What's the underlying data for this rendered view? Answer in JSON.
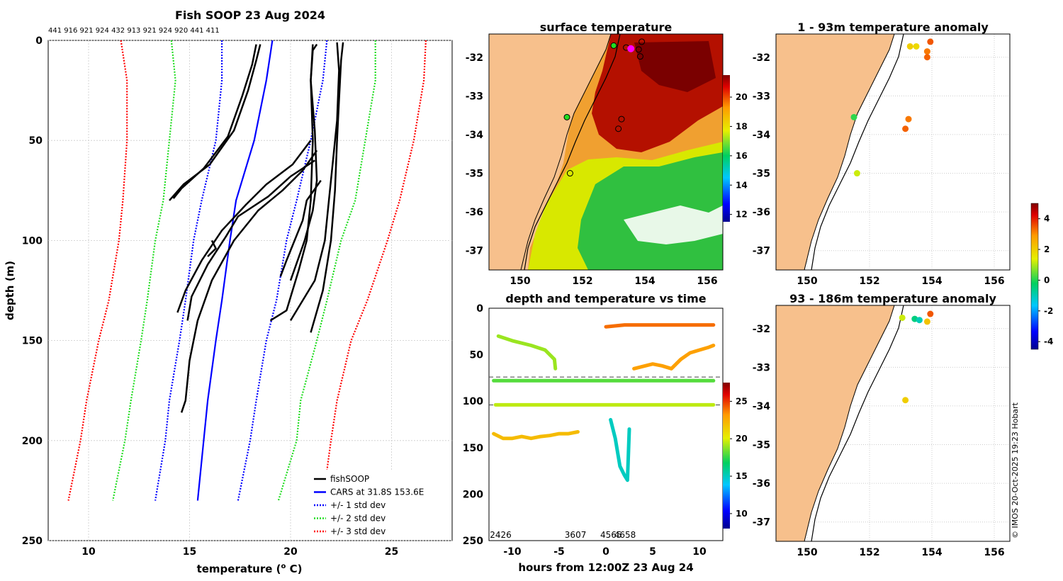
{
  "figure": {
    "credit": "© IMOS 20-Oct-2025 19:23 Hobart"
  },
  "chart_data": [
    {
      "id": "profile",
      "type": "line",
      "title": "Fish SOOP 23 Aug 2024",
      "subtitle_ids": "441 916 921 924 432 913 921 924 920 441 411",
      "xlabel": "temperature (",
      "xlabel_sup": "o",
      "xlabel_tail": " C)",
      "ylabel": "depth (m)",
      "xlim": [
        8,
        28
      ],
      "ylim": [
        0,
        250
      ],
      "xticks": [
        "10",
        "15",
        "20",
        "25"
      ],
      "yticks": [
        "0",
        "50",
        "100",
        "150",
        "200",
        "250"
      ],
      "grid": true,
      "legend": {
        "position": "bottom-right",
        "entries": [
          {
            "label": "fishSOOP",
            "color": "#000000",
            "style": "solid"
          },
          {
            "label": "CARS at 31.8S 153.6E",
            "color": "#0000ff",
            "style": "solid"
          },
          {
            "label": "+/- 1 std dev",
            "color": "#0000ff",
            "style": "dotted"
          },
          {
            "label": "+/- 2 std dev",
            "color": "#22dd22",
            "style": "dotted"
          },
          {
            "label": "+/- 3 std dev",
            "color": "#ff0000",
            "style": "dotted"
          }
        ]
      },
      "series": [
        {
          "name": "CARS mean",
          "color": "#0000ff",
          "dash": false,
          "depth": [
            0,
            20,
            50,
            80,
            100,
            130,
            150,
            180,
            200,
            230
          ],
          "temp": [
            19.1,
            18.8,
            18.2,
            17.3,
            17.0,
            16.6,
            16.3,
            15.9,
            15.7,
            15.4
          ]
        },
        {
          "name": "-1 std",
          "color": "#0000ff",
          "dash": true,
          "depth": [
            0,
            20,
            50,
            80,
            100,
            130,
            150,
            180,
            200,
            230
          ],
          "temp": [
            16.6,
            16.6,
            16.3,
            15.6,
            15.2,
            14.8,
            14.5,
            14.0,
            13.8,
            13.3
          ]
        },
        {
          "name": "+1 std",
          "color": "#0000ff",
          "dash": true,
          "depth": [
            0,
            20,
            50,
            80,
            100,
            130,
            150,
            180,
            200,
            230
          ],
          "temp": [
            21.8,
            21.6,
            21.0,
            20.3,
            19.8,
            19.3,
            18.8,
            18.3,
            18.0,
            17.4
          ]
        },
        {
          "name": "-2 std",
          "color": "#22dd22",
          "dash": true,
          "depth": [
            0,
            20,
            50,
            80,
            100,
            130,
            150,
            180,
            200,
            230
          ],
          "temp": [
            14.1,
            14.3,
            14.0,
            13.7,
            13.3,
            12.9,
            12.6,
            12.1,
            11.8,
            11.2
          ]
        },
        {
          "name": "+2 std",
          "color": "#22dd22",
          "dash": true,
          "depth": [
            0,
            20,
            50,
            80,
            100,
            130,
            150,
            180,
            200,
            230
          ],
          "temp": [
            24.2,
            24.2,
            23.7,
            23.2,
            22.5,
            21.8,
            21.3,
            20.5,
            20.3,
            19.4
          ]
        },
        {
          "name": "-3 std",
          "color": "#ff0000",
          "dash": true,
          "depth": [
            0,
            20,
            50,
            80,
            100,
            130,
            150,
            180,
            200,
            230
          ],
          "temp": [
            11.6,
            11.9,
            11.9,
            11.7,
            11.5,
            11.0,
            10.5,
            9.9,
            9.6,
            9.0
          ]
        },
        {
          "name": "+3 std",
          "color": "#ff0000",
          "dash": true,
          "depth": [
            0,
            20,
            50,
            80,
            100,
            130,
            150,
            180,
            200,
            230
          ],
          "temp": [
            26.7,
            26.6,
            26.1,
            25.4,
            24.8,
            23.8,
            23.0,
            22.3,
            22.0,
            21.6
          ]
        }
      ],
      "profiles": [
        {
          "depth": [
            2,
            10,
            25,
            45,
            62,
            72,
            80
          ],
          "temp": [
            18.5,
            18.3,
            17.9,
            17.2,
            16.0,
            14.7,
            14.0
          ]
        },
        {
          "depth": [
            2,
            12,
            28,
            48,
            64,
            74,
            79
          ],
          "temp": [
            18.3,
            18.1,
            17.6,
            16.9,
            15.7,
            14.6,
            14.2
          ]
        },
        {
          "depth": [
            55,
            65,
            75,
            85,
            100,
            120,
            140,
            160,
            180,
            186
          ],
          "temp": [
            21.3,
            20.6,
            19.6,
            18.4,
            17.2,
            16.1,
            15.4,
            15.0,
            14.8,
            14.6
          ]
        },
        {
          "depth": [
            50,
            62,
            72,
            82,
            95,
            110,
            125,
            136
          ],
          "temp": [
            21.0,
            20.1,
            18.8,
            17.8,
            16.6,
            15.6,
            14.8,
            14.4
          ]
        },
        {
          "depth": [
            60,
            68,
            78,
            88,
            98,
            112,
            128,
            140
          ],
          "temp": [
            21.2,
            20.0,
            18.9,
            17.4,
            16.8,
            15.9,
            15.1,
            14.9
          ]
        },
        {
          "depth": [
            1,
            10,
            30,
            50,
            75,
            100,
            125,
            146
          ],
          "temp": [
            22.6,
            22.5,
            22.4,
            22.3,
            22.2,
            22.0,
            21.6,
            21.0
          ]
        },
        {
          "depth": [
            1,
            15,
            40,
            60,
            80,
            100,
            120,
            140
          ],
          "temp": [
            22.3,
            22.4,
            22.3,
            22.1,
            21.9,
            21.7,
            21.2,
            20.0
          ]
        },
        {
          "depth": [
            2,
            5,
            20,
            45,
            70,
            85,
            100,
            120
          ],
          "temp": [
            21.3,
            21.1,
            21.0,
            21.2,
            21.3,
            21.1,
            20.7,
            20.0
          ]
        },
        {
          "depth": [
            2,
            20,
            50,
            80,
            100,
            115,
            135,
            140
          ],
          "temp": [
            21.1,
            21.0,
            21.1,
            21.0,
            20.8,
            20.4,
            19.8,
            19.0
          ]
        },
        {
          "depth": [
            70,
            80,
            90,
            100,
            110,
            118
          ],
          "temp": [
            21.5,
            20.8,
            20.6,
            20.2,
            19.8,
            19.5
          ]
        },
        {
          "depth": [
            100,
            104,
            108
          ],
          "temp": [
            16.1,
            16.3,
            15.9
          ]
        }
      ]
    },
    {
      "id": "sst",
      "type": "heatmap",
      "title": "surface temperature",
      "xlim": [
        149,
        156.5
      ],
      "ylim": [
        -37.5,
        -31.4
      ],
      "xticks": [
        "150",
        "152",
        "154",
        "156"
      ],
      "yticks": [
        "-32",
        "-33",
        "-34",
        "-35",
        "-36",
        "-37"
      ],
      "colorbar": {
        "ticks": [
          "20",
          "18",
          "16",
          "14",
          "12"
        ],
        "min": 11.5,
        "max": 21.5
      },
      "stations": [
        {
          "lon": 153.0,
          "lat": -31.7,
          "color": "#22dd22"
        },
        {
          "lon": 153.4,
          "lat": -31.75,
          "color": "#ffffff"
        },
        {
          "lon": 153.55,
          "lat": -31.78,
          "color": "#ff00ff"
        },
        {
          "lon": 153.9,
          "lat": -31.6,
          "color": "#ffffff"
        },
        {
          "lon": 153.8,
          "lat": -31.8,
          "color": "#ffffff"
        },
        {
          "lon": 153.85,
          "lat": -31.98,
          "color": "#ffffff"
        },
        {
          "lon": 151.5,
          "lat": -33.55,
          "color": "#22dd22"
        },
        {
          "lon": 153.25,
          "lat": -33.6,
          "color": "#ffffff"
        },
        {
          "lon": 153.15,
          "lat": -33.85,
          "color": "#ffffff"
        },
        {
          "lon": 151.6,
          "lat": -35.0,
          "color": "#ffffff"
        }
      ]
    },
    {
      "id": "timeseries",
      "type": "scatter",
      "title": "depth and temperature vs time",
      "xlabel": "hours from 12:00Z 23 Aug 24",
      "xlim": [
        -12.5,
        12.5
      ],
      "ylim": [
        0,
        250
      ],
      "xticks": [
        "-10",
        "-5",
        "0",
        "5",
        "10"
      ],
      "yticks": [
        "0",
        "50",
        "100",
        "150",
        "200",
        "250"
      ],
      "dashed_lines_depth": [
        74,
        104
      ],
      "id_labels": [
        {
          "text": "2426",
          "hour": -11.5
        },
        {
          "text": "3607",
          "hour": -3.5
        },
        {
          "text": "4565",
          "hour": 0.3
        },
        {
          "text": "4658",
          "hour": 1.8
        }
      ],
      "colorbar": {
        "ticks": [
          "25",
          "20",
          "15",
          "10"
        ],
        "min": 8,
        "max": 27.5
      },
      "series": [
        {
          "name": "deep-green",
          "hour": [
            -11.5,
            -10,
            -8,
            -6.5,
            -5.5,
            -5.4
          ],
          "depth": [
            30,
            35,
            40,
            45,
            55,
            65
          ],
          "temp": [
            19,
            19,
            18.8,
            18.6,
            18.5,
            18.5
          ]
        },
        {
          "name": "drop-105",
          "hour": [
            -11.8,
            -11,
            -10,
            -9,
            -8,
            -6,
            -4,
            -2,
            0,
            2,
            4,
            6,
            8,
            10,
            11.5
          ],
          "depth": [
            104,
            104,
            104,
            104,
            104,
            104,
            104,
            104,
            104,
            104,
            104,
            104,
            104,
            104,
            104
          ],
          "temp": [
            19.5,
            19.5,
            19.5,
            19.5,
            19.5,
            19.5,
            19.5,
            19.5,
            19.5,
            19.5,
            19.5,
            19.5,
            19.5,
            19.5,
            19.5
          ]
        },
        {
          "name": "drop-78",
          "hour": [
            -12,
            -10,
            -8,
            -6,
            -4,
            -2,
            0,
            2,
            4,
            6,
            8,
            10,
            11.5
          ],
          "depth": [
            78,
            78,
            78,
            78,
            78,
            78,
            78,
            78,
            78,
            78,
            78,
            78,
            78
          ],
          "temp": [
            18,
            18,
            18,
            18,
            18,
            18,
            18,
            18,
            18,
            18,
            18,
            18,
            18
          ]
        },
        {
          "name": "shallow-yellow",
          "hour": [
            -12,
            -11,
            -10,
            -9,
            -8,
            -7,
            -6,
            -5,
            -4,
            -3
          ],
          "depth": [
            135,
            140,
            140,
            138,
            140,
            138,
            137,
            135,
            135,
            133
          ],
          "temp": [
            22,
            22,
            22,
            22,
            22,
            22,
            22,
            22,
            22,
            22
          ]
        },
        {
          "name": "cyan-dive",
          "hour": [
            0.5,
            1,
            1.5,
            2,
            2.3,
            2.5
          ],
          "depth": [
            120,
            140,
            170,
            180,
            185,
            130
          ],
          "temp": [
            15,
            15,
            14.5,
            14.5,
            14.5,
            15
          ]
        },
        {
          "name": "orange-surface",
          "hour": [
            0,
            2,
            4,
            6,
            8,
            10,
            11.5
          ],
          "depth": [
            20,
            18,
            18,
            18,
            18,
            18,
            18
          ],
          "temp": [
            24,
            24,
            24,
            24,
            24,
            24,
            24
          ]
        },
        {
          "name": "yellow-mid",
          "hour": [
            3,
            5,
            6,
            7,
            8,
            9,
            10,
            11,
            11.5
          ],
          "depth": [
            65,
            60,
            62,
            65,
            55,
            48,
            45,
            42,
            40
          ],
          "temp": [
            23,
            23,
            23,
            23,
            23,
            23,
            23,
            23,
            23
          ]
        }
      ]
    },
    {
      "id": "anom1",
      "type": "scatter",
      "title": "1 - 93m temperature anomaly",
      "xlim": [
        149,
        156.5
      ],
      "ylim": [
        -37.5,
        -31.4
      ],
      "xticks": [
        "150",
        "152",
        "154",
        "156"
      ],
      "yticks": [
        "-32",
        "-33",
        "-34",
        "-35",
        "-36",
        "-37"
      ],
      "points": [
        {
          "lon": 153.95,
          "lat": -31.6,
          "anom": 3.5
        },
        {
          "lon": 153.3,
          "lat": -31.72,
          "anom": 2.0
        },
        {
          "lon": 153.5,
          "lat": -31.72,
          "anom": 1.8
        },
        {
          "lon": 153.85,
          "lat": -31.85,
          "anom": 3.2
        },
        {
          "lon": 153.85,
          "lat": -32.0,
          "anom": 3.4
        },
        {
          "lon": 151.5,
          "lat": -33.55,
          "anom": 0.1
        },
        {
          "lon": 153.25,
          "lat": -33.6,
          "anom": 3.2
        },
        {
          "lon": 153.15,
          "lat": -33.85,
          "anom": 3.4
        },
        {
          "lon": 151.6,
          "lat": -35.0,
          "anom": 1.2
        }
      ]
    },
    {
      "id": "anom2",
      "type": "scatter",
      "title": "93 - 186m temperature anomaly",
      "xlim": [
        149,
        156.5
      ],
      "ylim": [
        -37.5,
        -31.4
      ],
      "xticks": [
        "150",
        "152",
        "154",
        "156"
      ],
      "yticks": [
        "-32",
        "-33",
        "-34",
        "-35",
        "-36",
        "-37"
      ],
      "colorbar": {
        "ticks": [
          "4",
          "2",
          "0",
          "-2",
          "-4"
        ],
        "min": -4.5,
        "max": 5
      },
      "points": [
        {
          "lon": 153.95,
          "lat": -31.62,
          "anom": 3.5
        },
        {
          "lon": 153.05,
          "lat": -31.72,
          "anom": 1.2
        },
        {
          "lon": 153.45,
          "lat": -31.75,
          "anom": -0.5
        },
        {
          "lon": 153.6,
          "lat": -31.78,
          "anom": -1.0
        },
        {
          "lon": 153.85,
          "lat": -31.82,
          "anom": 2.2
        },
        {
          "lon": 153.15,
          "lat": -33.85,
          "anom": 2.0
        }
      ]
    }
  ]
}
